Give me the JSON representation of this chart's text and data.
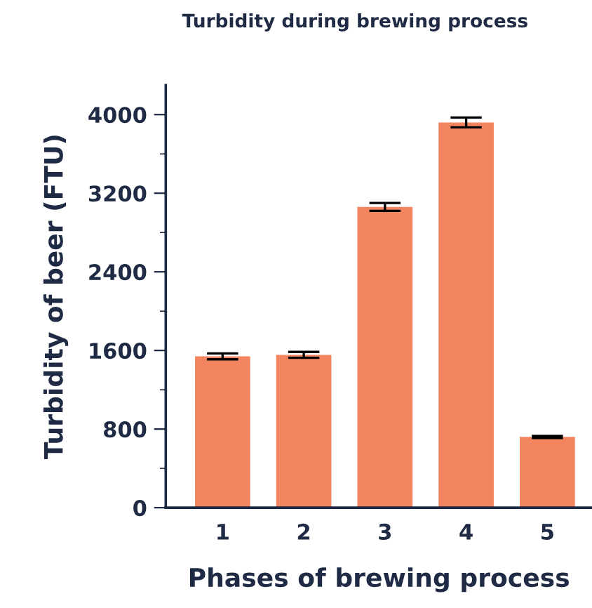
{
  "chart_data": {
    "type": "bar",
    "title": "Turbidity during brewing process",
    "xlabel": "Phases of brewing process",
    "ylabel": "Turbidity of beer (FTU)",
    "categories": [
      "1",
      "2",
      "3",
      "4",
      "5"
    ],
    "values": [
      1540,
      1555,
      3060,
      3920,
      720
    ],
    "errors": [
      30,
      30,
      40,
      50,
      10
    ],
    "color": "#f28560",
    "ylim": [
      0,
      4300
    ],
    "yticks": [
      0,
      {
        "value": 400,
        "label": null
      },
      800,
      {
        "value": 1200,
        "label": null
      },
      1600,
      {
        "value": 2000,
        "label": null
      },
      2400,
      {
        "value": 2800,
        "label": null
      },
      3200,
      {
        "value": 3600,
        "label": null
      },
      4000
    ],
    "grid": false,
    "legend": false
  }
}
